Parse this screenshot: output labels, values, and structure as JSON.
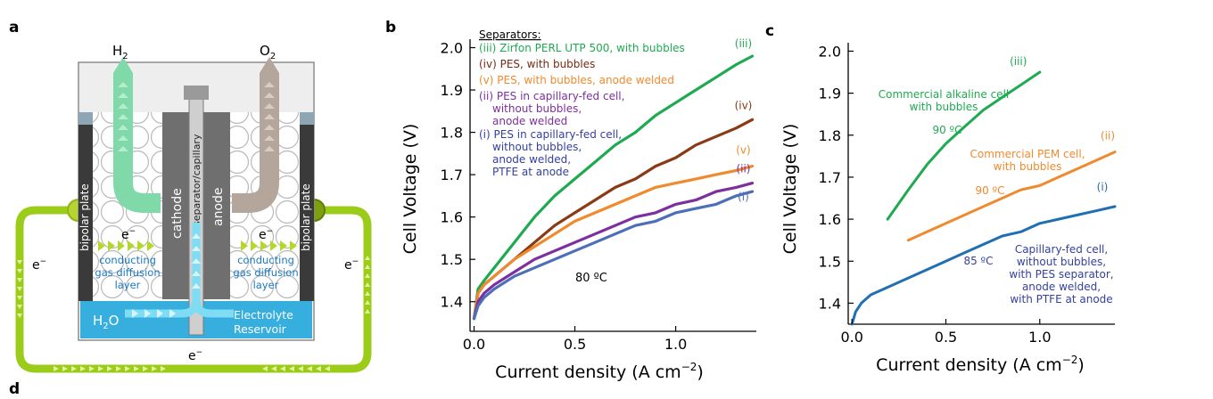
{
  "panels": {
    "a": "a",
    "b": "b",
    "c": "c",
    "d": "d"
  },
  "diagram": {
    "h2_label": "H",
    "h2_sub": "2",
    "o2_label": "O",
    "o2_sub": "2",
    "separator_label": "separator/capillary",
    "cathode_label": "cathode",
    "anode_label": "anode",
    "bipolar_left": "bipolar plate",
    "bipolar_right": "bipolar plate",
    "electron": "e",
    "electron_sup": "−",
    "gdl_left": [
      "conducting",
      "gas diffusion",
      "layer"
    ],
    "gdl_right": [
      "conducting",
      "gas diffusion",
      "layer"
    ],
    "water": "H",
    "water_sub": "2",
    "water_o": "O",
    "reservoir": [
      "Electrolyte",
      "Reservoir"
    ],
    "colors": {
      "h2": "#7fd9a8",
      "o2": "#b5a69b",
      "circuit": "#9ccc1a",
      "reservoir": "#36aede",
      "plate": "#3a3a3a",
      "electrode": "#6f6f6f",
      "separator": "#c8c8c8",
      "text_blue": "#1a78c2"
    }
  },
  "chart_data": [
    {
      "id": "b",
      "type": "line",
      "xlabel": "Current density (A cm",
      "xlabel_sup": "−2",
      "xlabel_end": ")",
      "ylabel": "Cell Voltage (V)",
      "xlim": [
        -0.02,
        1.4
      ],
      "ylim": [
        1.33,
        2.02
      ],
      "xticks": [
        0.0,
        0.5,
        1.0
      ],
      "xtick_labels": [
        "0.0",
        "0.5",
        "1.0"
      ],
      "yticks": [
        1.4,
        1.5,
        1.6,
        1.7,
        1.8,
        1.9,
        2.0
      ],
      "ytick_labels": [
        "1.4",
        "1.5",
        "1.6",
        "1.7",
        "1.8",
        "1.9",
        "2.0"
      ],
      "legend_title": "Separators:",
      "legend": [
        {
          "text": [
            "(iii) Zirfon PERL UTP 500, with bubbles"
          ],
          "color": "#1faa52"
        },
        {
          "text": [
            "(iv) PES, with bubbles"
          ],
          "color": "#7a2a12"
        },
        {
          "text": [
            "(v) PES, with bubbles, anode welded"
          ],
          "color": "#ef8a2e"
        },
        {
          "text": [
            "(ii) PES in capillary-fed cell,",
            "without bubbles,",
            "anode welded"
          ],
          "color": "#7d2f9e"
        },
        {
          "text": [
            "(i) PES in capillary-fed cell,",
            "without bubbles,",
            "anode welded,",
            "PTFE at anode"
          ],
          "color": "#34419e"
        }
      ],
      "annotation": "80 ºC",
      "series": [
        {
          "label": "(iii)",
          "color": "#1faa52",
          "x": [
            0.0,
            0.02,
            0.05,
            0.1,
            0.2,
            0.3,
            0.4,
            0.5,
            0.6,
            0.7,
            0.8,
            0.9,
            1.0,
            1.1,
            1.2,
            1.3,
            1.38
          ],
          "y": [
            1.36,
            1.43,
            1.45,
            1.48,
            1.54,
            1.6,
            1.65,
            1.69,
            1.73,
            1.77,
            1.8,
            1.84,
            1.87,
            1.9,
            1.93,
            1.96,
            1.98
          ]
        },
        {
          "label": "(iv)",
          "color": "#8a3a14",
          "x": [
            0.0,
            0.02,
            0.05,
            0.1,
            0.2,
            0.3,
            0.4,
            0.5,
            0.6,
            0.7,
            0.8,
            0.9,
            1.0,
            1.1,
            1.2,
            1.3,
            1.38
          ],
          "y": [
            1.36,
            1.42,
            1.44,
            1.46,
            1.5,
            1.54,
            1.58,
            1.61,
            1.64,
            1.67,
            1.69,
            1.72,
            1.74,
            1.77,
            1.79,
            1.81,
            1.83
          ]
        },
        {
          "label": "(v)",
          "color": "#ef8a2e",
          "x": [
            0.0,
            0.02,
            0.05,
            0.1,
            0.2,
            0.3,
            0.4,
            0.5,
            0.6,
            0.7,
            0.8,
            0.9,
            1.0,
            1.1,
            1.2,
            1.3,
            1.38
          ],
          "y": [
            1.36,
            1.42,
            1.44,
            1.46,
            1.5,
            1.53,
            1.56,
            1.59,
            1.61,
            1.63,
            1.65,
            1.67,
            1.68,
            1.69,
            1.7,
            1.71,
            1.72
          ]
        },
        {
          "label": "(ii)",
          "color": "#7d2f9e",
          "x": [
            0.0,
            0.02,
            0.05,
            0.1,
            0.2,
            0.3,
            0.4,
            0.5,
            0.6,
            0.7,
            0.8,
            0.9,
            1.0,
            1.1,
            1.2,
            1.3,
            1.38
          ],
          "y": [
            1.36,
            1.4,
            1.42,
            1.44,
            1.47,
            1.5,
            1.52,
            1.54,
            1.56,
            1.58,
            1.6,
            1.61,
            1.63,
            1.64,
            1.66,
            1.67,
            1.68
          ]
        },
        {
          "label": "(i)",
          "color": "#4d6fb8",
          "x": [
            0.0,
            0.02,
            0.05,
            0.1,
            0.2,
            0.3,
            0.4,
            0.5,
            0.6,
            0.7,
            0.8,
            0.9,
            1.0,
            1.1,
            1.2,
            1.3,
            1.38
          ],
          "y": [
            1.36,
            1.39,
            1.41,
            1.43,
            1.46,
            1.48,
            1.5,
            1.52,
            1.54,
            1.56,
            1.58,
            1.59,
            1.61,
            1.62,
            1.63,
            1.65,
            1.66
          ]
        }
      ]
    },
    {
      "id": "c",
      "type": "line",
      "xlabel": "Current density (A cm",
      "xlabel_sup": "−2",
      "xlabel_end": ")",
      "ylabel": "Cell Voltage (V)",
      "xlim": [
        -0.02,
        1.4
      ],
      "ylim": [
        1.35,
        2.02
      ],
      "xticks": [
        0.0,
        0.5,
        1.0
      ],
      "xtick_labels": [
        "0.0",
        "0.5",
        "1.0"
      ],
      "yticks": [
        1.4,
        1.5,
        1.6,
        1.7,
        1.8,
        1.9,
        2.0
      ],
      "ytick_labels": [
        "1.4",
        "1.5",
        "1.6",
        "1.7",
        "1.8",
        "1.9",
        "2.0"
      ],
      "series": [
        {
          "label": "(iii)",
          "color": "#1faa52",
          "x": [
            0.19,
            0.3,
            0.4,
            0.5,
            0.6,
            0.7,
            0.8,
            0.9,
            1.0
          ],
          "y": [
            1.6,
            1.67,
            1.73,
            1.78,
            1.82,
            1.86,
            1.89,
            1.92,
            1.95
          ]
        },
        {
          "label": "(ii)",
          "color": "#ef8a2e",
          "x": [
            0.3,
            0.4,
            0.5,
            0.6,
            0.7,
            0.8,
            0.9,
            1.0,
            1.1,
            1.2,
            1.3,
            1.4
          ],
          "y": [
            1.55,
            1.57,
            1.59,
            1.61,
            1.63,
            1.65,
            1.67,
            1.68,
            1.7,
            1.72,
            1.74,
            1.76
          ]
        },
        {
          "label": "(i)",
          "color": "#1f6fb2",
          "x": [
            0.0,
            0.02,
            0.05,
            0.1,
            0.2,
            0.3,
            0.4,
            0.5,
            0.6,
            0.7,
            0.8,
            0.9,
            1.0,
            1.1,
            1.2,
            1.3,
            1.4
          ],
          "y": [
            1.35,
            1.38,
            1.4,
            1.42,
            1.44,
            1.46,
            1.48,
            1.5,
            1.52,
            1.54,
            1.56,
            1.57,
            1.59,
            1.6,
            1.61,
            1.62,
            1.63
          ]
        }
      ],
      "annotations": [
        {
          "text": [
            "Commercial alkaline cell",
            "with bubbles"
          ],
          "color": "#1faa52"
        },
        {
          "text": [
            "90 ºC"
          ],
          "color": "#1faa52"
        },
        {
          "text": [
            "Commercial PEM cell,",
            "with bubbles"
          ],
          "color": "#ef8a2e"
        },
        {
          "text": [
            "90 ºC"
          ],
          "color": "#ef8a2e"
        },
        {
          "text": [
            "Capillary-fed cell,",
            "without bubbles,",
            "with PES separator,",
            "anode welded,",
            "with PTFE at anode"
          ],
          "color": "#34419e"
        },
        {
          "text": [
            "85 ºC"
          ],
          "color": "#34419e"
        }
      ]
    }
  ]
}
